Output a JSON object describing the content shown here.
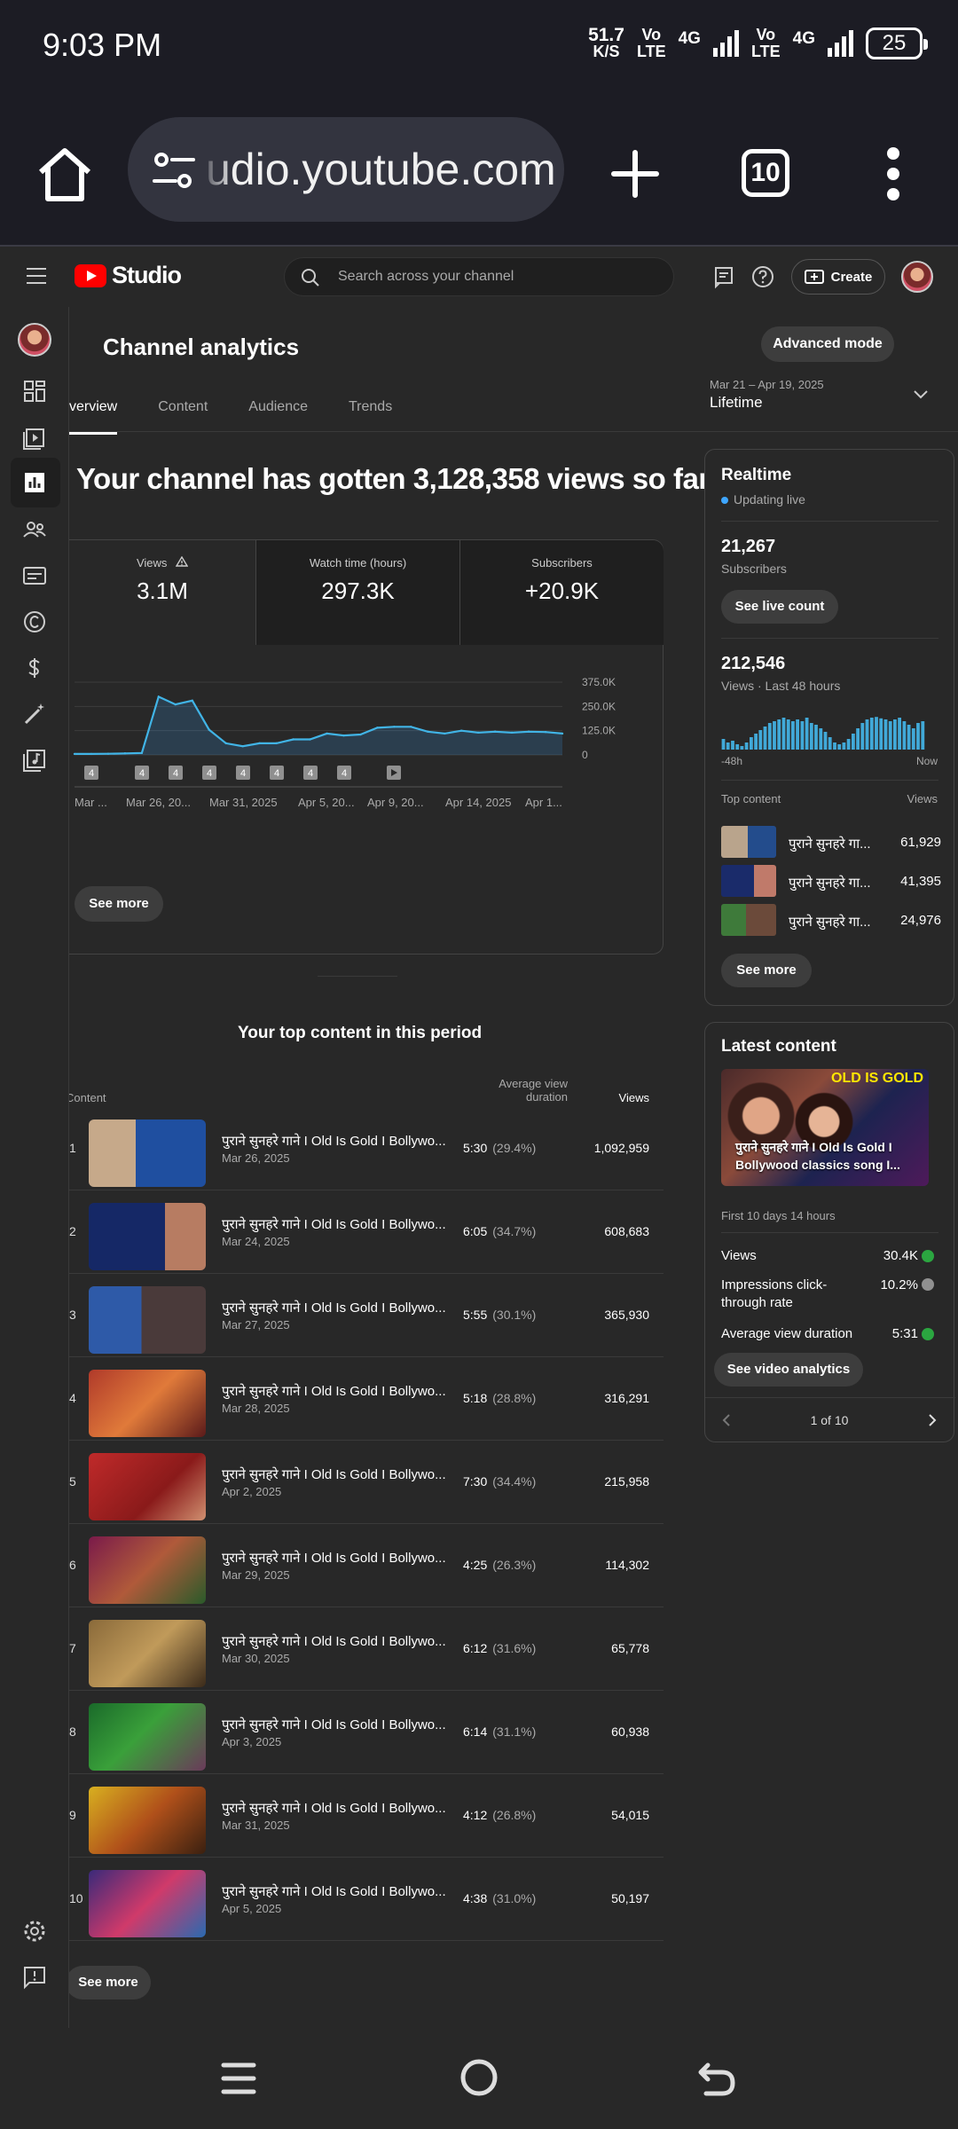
{
  "status": {
    "time": "9:03 PM",
    "speed_value": "51.7",
    "speed_unit": "K/S",
    "net1_top": "Vo",
    "net1_bottom": "LTE",
    "net1_gen": "4G",
    "net2_top": "Vo",
    "net2_bottom": "LTE",
    "net2_gen": "4G",
    "battery": "25"
  },
  "browser": {
    "url": "udio.youtube.com",
    "tab_count": "10"
  },
  "header": {
    "logo_text": "Studio",
    "search_placeholder": "Search across your channel",
    "create_label": "Create"
  },
  "page": {
    "title": "Channel analytics",
    "advanced_mode": "Advanced mode",
    "date_range": "Mar 21 – Apr 19, 2025",
    "date_period": "Lifetime",
    "tabs": [
      {
        "label": "verview",
        "active": true
      },
      {
        "label": "Content",
        "active": false
      },
      {
        "label": "Audience",
        "active": false
      },
      {
        "label": "Trends",
        "active": false
      }
    ],
    "headline": "Your channel has gotten 3,128,358 views so far"
  },
  "metrics": [
    {
      "label": "Views",
      "value": "3.1M",
      "warning": true
    },
    {
      "label": "Watch time (hours)",
      "value": "297.3K"
    },
    {
      "label": "Subscribers",
      "value": "+20.9K"
    }
  ],
  "chart_data": {
    "type": "area",
    "series_name": "",
    "y_ticks": [
      "375.0K",
      "250.0K",
      "125.0K",
      "0"
    ],
    "ylim": [
      0,
      375000
    ],
    "x_labels": [
      "Mar ...",
      "Mar 26, 20...",
      "Mar 31, 2025",
      "Apr 5, 20...",
      "Apr 9, 20...",
      "Apr 14, 2025",
      "Apr 1..."
    ],
    "values": [
      5000,
      5000,
      6000,
      8000,
      10000,
      300000,
      260000,
      280000,
      130000,
      60000,
      45000,
      60000,
      60000,
      80000,
      80000,
      110000,
      100000,
      105000,
      140000,
      145000,
      145000,
      120000,
      110000,
      125000,
      115000,
      120000,
      115000,
      120000,
      118000,
      110000
    ],
    "annotation_markers": [
      "4",
      "4",
      "4",
      "4",
      "4",
      "4",
      "4",
      "4",
      "play"
    ],
    "grid": true
  },
  "analytics_see_more": "See more",
  "top_content": {
    "title": "Your top content in this period",
    "col_content": "Content",
    "col_avg_line1": "Average view",
    "col_avg_line2": "duration",
    "col_views": "Views",
    "rows": [
      {
        "rank": "1",
        "title": "पुराने सुनहरे गाने I Old Is Gold I Bollywo...",
        "date": "Mar 26, 2025",
        "duration": "5:30",
        "pct": "(29.4%)",
        "views": "1,092,959"
      },
      {
        "rank": "2",
        "title": "पुराने सुनहरे गाने I Old Is Gold I Bollywo...",
        "date": "Mar 24, 2025",
        "duration": "6:05",
        "pct": "(34.7%)",
        "views": "608,683"
      },
      {
        "rank": "3",
        "title": "पुराने सुनहरे गाने I Old Is Gold I Bollywo...",
        "date": "Mar 27, 2025",
        "duration": "5:55",
        "pct": "(30.1%)",
        "views": "365,930"
      },
      {
        "rank": "4",
        "title": "पुराने सुनहरे गाने I Old Is Gold I Bollywo...",
        "date": "Mar 28, 2025",
        "duration": "5:18",
        "pct": "(28.8%)",
        "views": "316,291"
      },
      {
        "rank": "5",
        "title": "पुराने सुनहरे गाने I Old Is Gold I Bollywo...",
        "date": "Apr 2, 2025",
        "duration": "7:30",
        "pct": "(34.4%)",
        "views": "215,958"
      },
      {
        "rank": "6",
        "title": "पुराने सुनहरे गाने I Old Is Gold I Bollywo...",
        "date": "Mar 29, 2025",
        "duration": "4:25",
        "pct": "(26.3%)",
        "views": "114,302"
      },
      {
        "rank": "7",
        "title": "पुराने सुनहरे गाने I Old Is Gold I Bollywo...",
        "date": "Mar 30, 2025",
        "duration": "6:12",
        "pct": "(31.6%)",
        "views": "65,778"
      },
      {
        "rank": "8",
        "title": "पुराने सुनहरे गाने I Old Is Gold I Bollywo...",
        "date": "Apr 3, 2025",
        "duration": "6:14",
        "pct": "(31.1%)",
        "views": "60,938"
      },
      {
        "rank": "9",
        "title": "पुराने सुनहरे गाने I Old Is Gold I Bollywo...",
        "date": "Mar 31, 2025",
        "duration": "4:12",
        "pct": "(26.8%)",
        "views": "54,015"
      },
      {
        "rank": "10",
        "title": "पुराने सुनहरे गाने I Old Is Gold I Bollywo...",
        "date": "Apr 5, 2025",
        "duration": "4:38",
        "pct": "(31.0%)",
        "views": "50,197"
      }
    ],
    "see_more": "See more"
  },
  "realtime": {
    "title": "Realtime",
    "status": "Updating live",
    "subscribers_value": "21,267",
    "subscribers_label": "Subscribers",
    "live_count_button": "See live count",
    "views_value": "212,546",
    "views_label": "Views · Last 48 hours",
    "bar_left_label": "-48h",
    "bar_right_label": "Now",
    "bars": [
      30,
      20,
      25,
      15,
      10,
      20,
      35,
      45,
      55,
      65,
      75,
      80,
      85,
      90,
      85,
      80,
      85,
      80,
      90,
      75,
      70,
      60,
      50,
      35,
      20,
      15,
      20,
      30,
      45,
      60,
      75,
      85,
      90,
      92,
      88,
      85,
      80,
      85,
      90,
      80,
      70,
      60,
      75,
      80
    ],
    "top_content_label": "Top content",
    "top_views_label": "Views",
    "top_items": [
      {
        "title": "पुराने सुनहरे गा...",
        "views": "61,929"
      },
      {
        "title": "पुराने सुनहरे गा...",
        "views": "41,395"
      },
      {
        "title": "पुराने सुनहरे गा...",
        "views": "24,976"
      }
    ],
    "see_more": "See more"
  },
  "latest": {
    "title": "Latest content",
    "thumb_gold": "OLD IS GOLD",
    "thumb_caption": "पुराने सुनहरे गाने I Old Is Gold I Bollywood classics song I...",
    "period": "First 10 days 14 hours",
    "stats": [
      {
        "label": "Views",
        "value": "30.4K",
        "status_color": "#2ba640"
      },
      {
        "label": "Impressions click-through rate",
        "value": "10.2%",
        "status_color": "#909090"
      },
      {
        "label": "Average view duration",
        "value": "5:31",
        "status_color": "#2ba640"
      }
    ],
    "video_analytics_button": "See video analytics",
    "pager": "1 of 10"
  }
}
